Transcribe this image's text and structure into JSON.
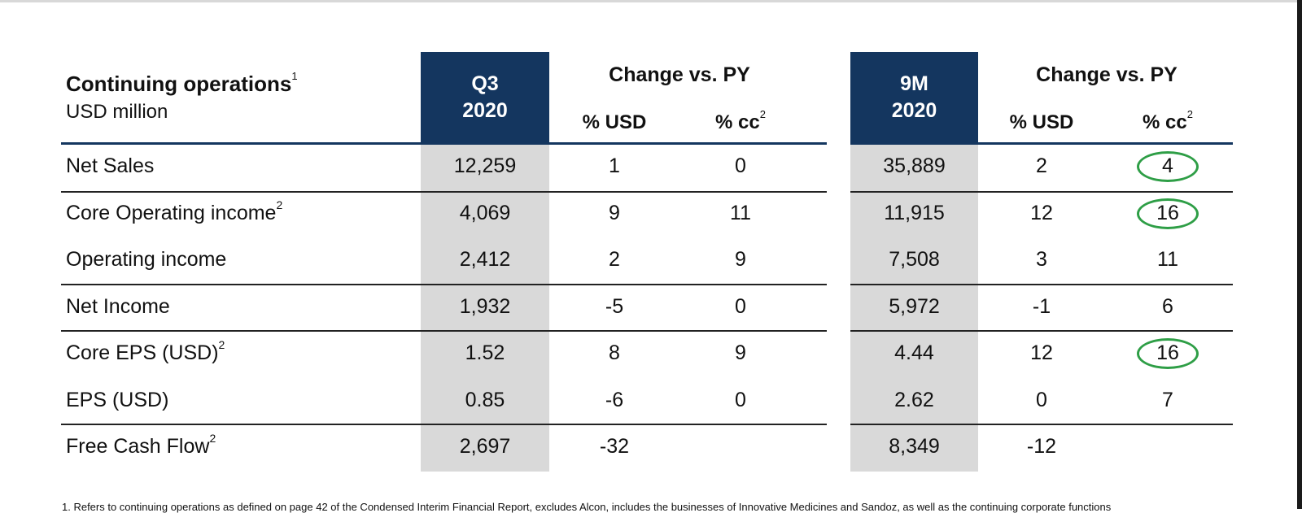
{
  "table": {
    "header": {
      "title": "Continuing operations",
      "title_sup": "1",
      "unit": "USD million",
      "q3_line1": "Q3",
      "q3_line2": "2020",
      "change_label_1": "Change vs. PY",
      "change_label_2": "Change vs. PY",
      "m9_line1": "9M",
      "m9_line2": "2020",
      "usd_label": "% USD",
      "cc_label": "% cc",
      "cc_sup": "2"
    },
    "rows": [
      {
        "label": "Net Sales",
        "sup": "",
        "q3": "12,259",
        "q3_usd": "1",
        "q3_cc": "0",
        "m9": "35,889",
        "m9_usd": "2",
        "m9_cc": "4",
        "m9_cc_circled": true
      },
      {
        "label": "Core Operating income",
        "sup": "2",
        "q3": "4,069",
        "q3_usd": "9",
        "q3_cc": "11",
        "m9": "11,915",
        "m9_usd": "12",
        "m9_cc": "16",
        "m9_cc_circled": true
      },
      {
        "label": "Operating income",
        "sup": "",
        "q3": "2,412",
        "q3_usd": "2",
        "q3_cc": "9",
        "m9": "7,508",
        "m9_usd": "3",
        "m9_cc": "11",
        "m9_cc_circled": false
      },
      {
        "label": "Net Income",
        "sup": "",
        "q3": "1,932",
        "q3_usd": "-5",
        "q3_cc": "0",
        "m9": "5,972",
        "m9_usd": "-1",
        "m9_cc": "6",
        "m9_cc_circled": false
      },
      {
        "label": "Core EPS (USD)",
        "sup": "2",
        "q3": "1.52",
        "q3_usd": "8",
        "q3_cc": "9",
        "m9": "4.44",
        "m9_usd": "12",
        "m9_cc": "16",
        "m9_cc_circled": true
      },
      {
        "label": "EPS (USD)",
        "sup": "",
        "q3": "0.85",
        "q3_usd": "-6",
        "q3_cc": "0",
        "m9": "2.62",
        "m9_usd": "0",
        "m9_cc": "7",
        "m9_cc_circled": false
      },
      {
        "label": "Free Cash Flow",
        "sup": "2",
        "q3": "2,697",
        "q3_usd": "-32",
        "q3_cc": "",
        "m9": "8,349",
        "m9_usd": "-12",
        "m9_cc": "",
        "m9_cc_circled": false
      }
    ]
  },
  "footnote": "1. Refers to continuing operations as defined on page 42 of the Condensed Interim Financial Report, excludes Alcon, includes the businesses of Innovative Medicines and Sandoz, as well as the continuing corporate functions",
  "colors": {
    "navy": "#14365f",
    "gray_column": "#d9d9d9",
    "circle_green": "#2e9e46"
  }
}
